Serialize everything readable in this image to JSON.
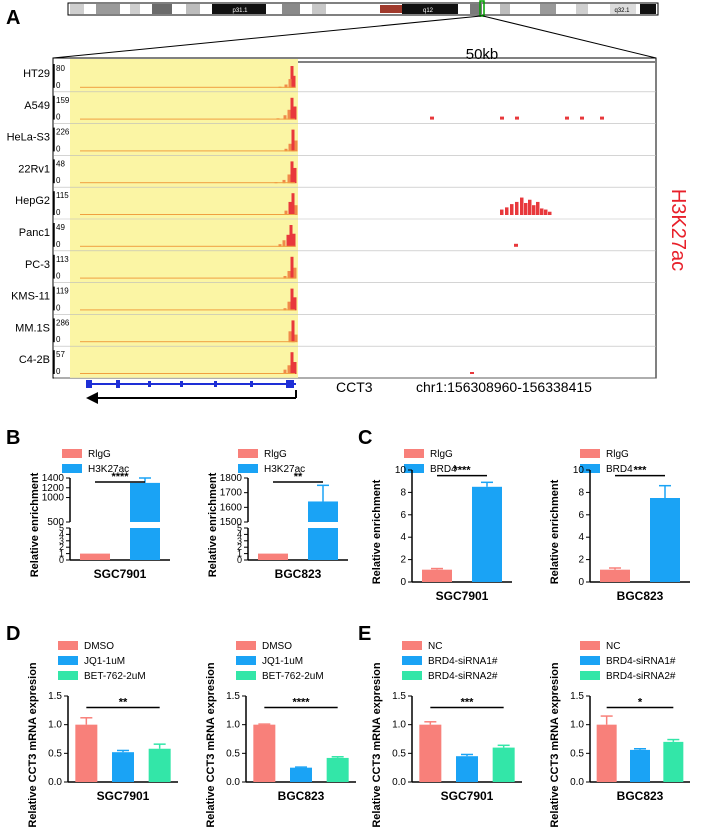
{
  "panel_labels": {
    "A": "A",
    "B": "B",
    "C": "C",
    "D": "D",
    "E": "E"
  },
  "colors": {
    "red": "#f8807a",
    "blue": "#1aa3f5",
    "green": "#33e6a8",
    "track": "#e8383c",
    "highlight": "#fbf5a4",
    "gene": "#1e2fd6",
    "chrom_band": "#a03a2c"
  },
  "chromosome": {
    "bands": [
      "p31.1",
      "q12",
      "q32.1"
    ]
  },
  "browser": {
    "scale_label": "50kb",
    "signal_label": "H3K27ac",
    "gene": "CCT3",
    "coords": "chr1:156308960-156338415",
    "tracks": [
      {
        "name": "HT29",
        "max": "80",
        "min": "0"
      },
      {
        "name": "A549",
        "max": "159",
        "min": "0"
      },
      {
        "name": "HeLa-S3",
        "max": "226",
        "min": "0"
      },
      {
        "name": "22Rv1",
        "max": "48",
        "min": "0"
      },
      {
        "name": "HepG2",
        "max": "115",
        "min": "0"
      },
      {
        "name": "Panc1",
        "max": "49",
        "min": "0"
      },
      {
        "name": "PC-3",
        "max": "113",
        "min": "0"
      },
      {
        "name": "KMS-11",
        "max": "119",
        "min": "0"
      },
      {
        "name": "MM.1S",
        "max": "286",
        "min": "0"
      },
      {
        "name": "C4-2B",
        "max": "57",
        "min": "0"
      }
    ]
  },
  "chart_data": [
    {
      "panel": "B",
      "type": "bar",
      "title": "SGC7901",
      "ylabel": "Relative enrichment",
      "categories": [
        "RIgG",
        "H3K27ac"
      ],
      "legend": [
        "RlgG",
        "H3K27ac"
      ],
      "values": [
        1,
        1300
      ],
      "errors": [
        0,
        100
      ],
      "broken_axis": {
        "lower": [
          0,
          5
        ],
        "upper": [
          500,
          1400
        ]
      },
      "lower_ticks": [
        "0",
        "1",
        "2",
        "3",
        "4",
        "5"
      ],
      "upper_ticks": [
        "500",
        "1000",
        "1200",
        "1400"
      ],
      "significance": "****"
    },
    {
      "panel": "B",
      "type": "bar",
      "title": "BGC823",
      "ylabel": "Relative enrichment",
      "categories": [
        "RIgG",
        "H3K27ac"
      ],
      "legend": [
        "RlgG",
        "H3K27ac"
      ],
      "values": [
        1,
        1640
      ],
      "errors": [
        0.3,
        110
      ],
      "broken_axis": {
        "lower": [
          0,
          5
        ],
        "upper": [
          1500,
          1800
        ]
      },
      "lower_ticks": [
        "0",
        "1",
        "2",
        "3",
        "4",
        "5"
      ],
      "upper_ticks": [
        "1500",
        "1600",
        "1700",
        "1800"
      ],
      "significance": "**"
    },
    {
      "panel": "C",
      "type": "bar",
      "title": "SGC7901",
      "ylabel": "Relative enrichment",
      "categories": [
        "RIgG",
        "BRD4"
      ],
      "legend": [
        "RlgG",
        "BRD4"
      ],
      "values": [
        1.1,
        8.5
      ],
      "errors": [
        0.1,
        0.4
      ],
      "ylim": [
        0,
        10
      ],
      "ticks": [
        "0",
        "2",
        "4",
        "6",
        "8",
        "10"
      ],
      "significance": "****"
    },
    {
      "panel": "C",
      "type": "bar",
      "title": "BGC823",
      "ylabel": "Relative enrichment",
      "categories": [
        "RIgG",
        "BRD4"
      ],
      "legend": [
        "RlgG",
        "BRD4"
      ],
      "values": [
        1.1,
        7.5
      ],
      "errors": [
        0.15,
        1.1
      ],
      "ylim": [
        0,
        10
      ],
      "ticks": [
        "0",
        "2",
        "4",
        "6",
        "8",
        "10"
      ],
      "significance": "***"
    },
    {
      "panel": "D",
      "type": "bar",
      "title": "SGC7901",
      "ylabel": "Relative CCT3 mRNA expresion",
      "categories": [
        "DMSO",
        "JQ1-1uM",
        "BET-762-2uM"
      ],
      "legend": [
        "DMSO",
        "JQ1-1uM",
        "BET-762-2uM"
      ],
      "values": [
        1.0,
        0.52,
        0.58
      ],
      "errors": [
        0.12,
        0.03,
        0.08
      ],
      "ylim": [
        0,
        1.5
      ],
      "ticks": [
        "0.0",
        "0.5",
        "1.0",
        "1.5"
      ],
      "significance": "**"
    },
    {
      "panel": "D",
      "type": "bar",
      "title": "BGC823",
      "ylabel": "Relative CCT3 mRNA expresion",
      "categories": [
        "DMSO",
        "JQ1-1uM",
        "BET-762-2uM"
      ],
      "legend": [
        "DMSO",
        "JQ1-1uM",
        "BET-762-2uM"
      ],
      "values": [
        1.0,
        0.25,
        0.42
      ],
      "errors": [
        0.01,
        0.01,
        0.02
      ],
      "ylim": [
        0,
        1.5
      ],
      "ticks": [
        "0.0",
        "0.5",
        "1.0",
        "1.5"
      ],
      "significance": "****"
    },
    {
      "panel": "E",
      "type": "bar",
      "title": "SGC7901",
      "ylabel": "Relative CCT3 mRNA expresion",
      "categories": [
        "NC",
        "BRD4-siRNA1#",
        "BRD4-siRNA2#"
      ],
      "legend": [
        "NC",
        "BRD4-siRNA1#",
        "BRD4-siRNA2#"
      ],
      "values": [
        1.0,
        0.45,
        0.6
      ],
      "errors": [
        0.05,
        0.03,
        0.04
      ],
      "ylim": [
        0,
        1.5
      ],
      "ticks": [
        "0.0",
        "0.5",
        "1.0",
        "1.5"
      ],
      "significance": "***"
    },
    {
      "panel": "E",
      "type": "bar",
      "title": "BGC823",
      "ylabel": "Relative CCT3 mRNA expresion",
      "categories": [
        "NC",
        "BRD4-siRNA1#",
        "BRD4-siRNA2#"
      ],
      "legend": [
        "NC",
        "BRD4-siRNA1#",
        "BRD4-siRNA2#"
      ],
      "values": [
        1.0,
        0.56,
        0.7
      ],
      "errors": [
        0.15,
        0.02,
        0.04
      ],
      "ylim": [
        0,
        1.5
      ],
      "ticks": [
        "0.0",
        "0.5",
        "1.0",
        "1.5"
      ],
      "significance": "*"
    }
  ]
}
